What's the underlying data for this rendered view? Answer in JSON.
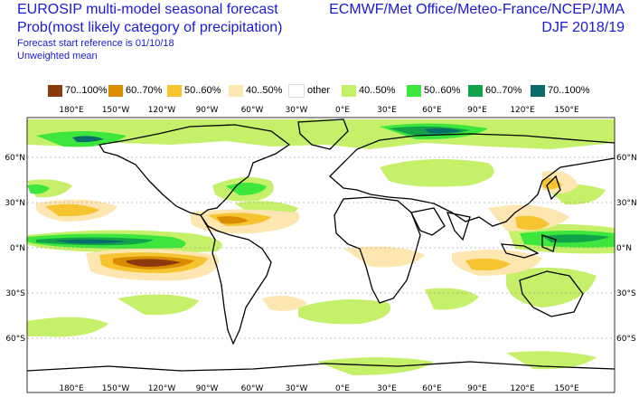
{
  "header": {
    "title_line1": "EUROSIP multi-model seasonal forecast",
    "title_line2": "Prob(most likely category of precipitation)",
    "forecast_ref": "Forecast start reference is 01/10/18",
    "weighting": "Unweighted mean",
    "centres": "ECMWF/Met Office/Meteo-France/NCEP/JMA",
    "season": "DJF 2018/19"
  },
  "legend": [
    {
      "label": "70..100%",
      "color": "#8b3a0e"
    },
    {
      "label": "60..70%",
      "color": "#d98c00"
    },
    {
      "label": "50..60%",
      "color": "#f5c430"
    },
    {
      "label": "40..50%",
      "color": "#fde6b0"
    },
    {
      "label": "other",
      "color": "#ffffff"
    },
    {
      "label": "40..50%",
      "color": "#c6f06a"
    },
    {
      "label": "50..60%",
      "color": "#3ce63c"
    },
    {
      "label": "60..70%",
      "color": "#12a34a"
    },
    {
      "label": "70..100%",
      "color": "#0a6b6b"
    }
  ],
  "map": {
    "lon_labels": [
      "180°E",
      "150°W",
      "120°W",
      "90°W",
      "60°W",
      "30°W",
      "0°E",
      "30°E",
      "60°E",
      "90°E",
      "120°E",
      "150°E"
    ],
    "lat_labels": [
      "60°N",
      "30°N",
      "0°N",
      "30°S",
      "60°S"
    ]
  }
}
